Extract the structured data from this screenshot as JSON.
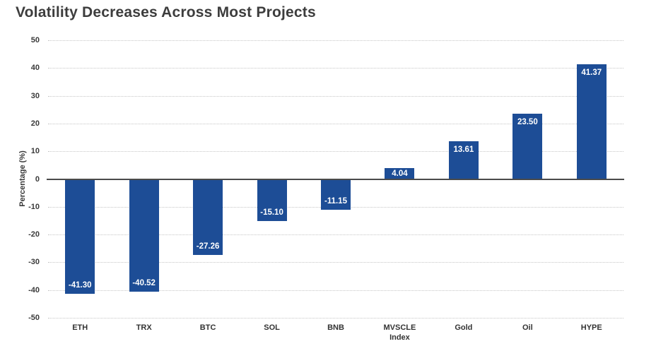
{
  "title": "Volatility Decreases Across Most Projects",
  "colors": {
    "background": "#ffffff",
    "title_text": "#3d3d3d",
    "axis_text": "#3a3a3a",
    "gridline": "#c6c6c6",
    "zero_line": "#4a4a4a",
    "bar": "#1d4d96",
    "value_label_text": "#ffffff"
  },
  "chart_data": {
    "type": "bar",
    "title": "Volatility Decreases Across Most Projects",
    "categories": [
      "ETH",
      "TRX",
      "BTC",
      "SOL",
      "BNB",
      "MVSCLE Index",
      "Gold",
      "Oil",
      "HYPE"
    ],
    "values": [
      -41.3,
      -40.52,
      -27.26,
      -15.1,
      -11.15,
      4.04,
      13.61,
      23.5,
      41.37
    ],
    "value_labels": [
      "-41.30",
      "-40.52",
      "-27.26",
      "-15.10",
      "-11.15",
      "4.04",
      "13.61",
      "23.50",
      "41.37"
    ],
    "xlabel": "",
    "ylabel": "Percentage (%)",
    "ylim": [
      -50,
      50
    ],
    "yticks": [
      50,
      40,
      30,
      20,
      10,
      0,
      -10,
      -20,
      -30,
      -40,
      -50
    ],
    "grid": "horizontal-dotted",
    "legend": "none",
    "bar_color": "#1d4d96",
    "value_labels_inside_bars": true
  }
}
